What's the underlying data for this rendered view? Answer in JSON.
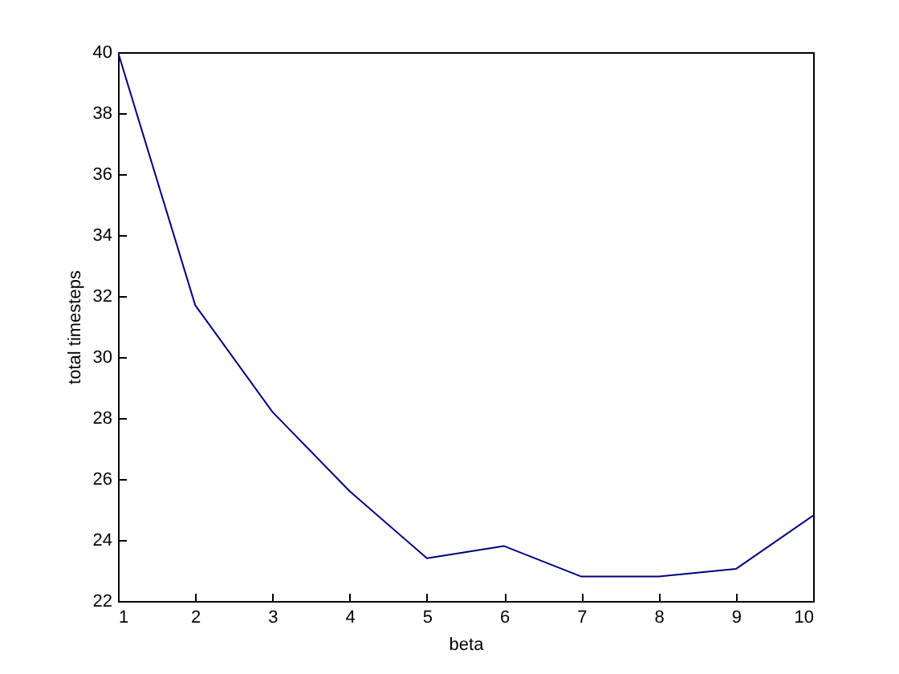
{
  "chart_data": {
    "type": "line",
    "xlabel": "beta",
    "ylabel": "total timesteps",
    "x": [
      1,
      2,
      3,
      4,
      5,
      6,
      7,
      8,
      9,
      10
    ],
    "values": [
      40,
      31.7,
      28.2,
      25.6,
      23.4,
      23.8,
      22.8,
      22.8,
      23.05,
      24.8
    ],
    "color": "#000080",
    "xlim": [
      1,
      10
    ],
    "xticks": [
      1,
      2,
      3,
      4,
      5,
      6,
      7,
      8,
      9,
      10
    ],
    "ylim": [
      22,
      40
    ],
    "yticks": [
      22,
      24,
      26,
      28,
      30,
      32,
      34,
      36,
      38,
      40
    ],
    "grid": false
  }
}
